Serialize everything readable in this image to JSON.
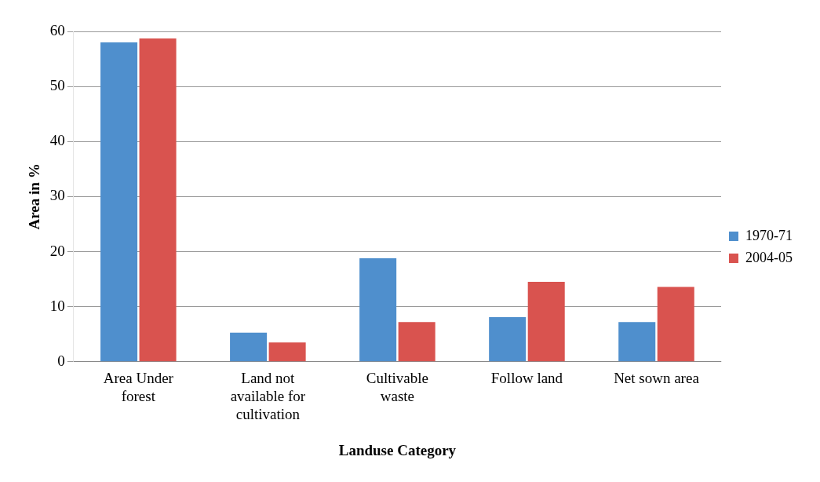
{
  "chart_data": {
    "type": "bar",
    "xlabel": "Landuse Category",
    "ylabel": "Area in %",
    "categories": [
      "Area Under forest",
      "Land not available for cultivation",
      "Cultivable waste",
      "Follow land",
      "Net sown area"
    ],
    "series": [
      {
        "name": "1970-71",
        "color": "#4f8fcd",
        "values": [
          58,
          5.3,
          18.8,
          8.1,
          7.2
        ]
      },
      {
        "name": "2004-05",
        "color": "#d9534f",
        "values": [
          58.7,
          3.5,
          7.2,
          14.5,
          13.6
        ]
      }
    ],
    "ylim": [
      0,
      60
    ],
    "yticks": [
      0,
      10,
      20,
      30,
      40,
      50,
      60
    ],
    "grid": "y",
    "legend": "right"
  }
}
